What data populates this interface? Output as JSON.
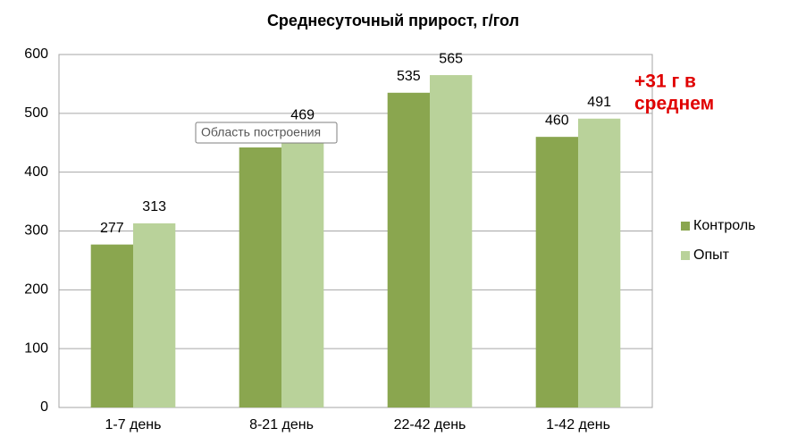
{
  "chart_data": {
    "type": "bar",
    "title": "Среднесуточный прирост, г/гол",
    "categories": [
      "1-7 день",
      "8-21 день",
      "22-42 день",
      "1-42 день"
    ],
    "series": [
      {
        "name": "Контроль",
        "color": "#8aa64f",
        "values": [
          277,
          442,
          535,
          460
        ]
      },
      {
        "name": "Опыт",
        "color": "#b9d29a",
        "values": [
          313,
          469,
          565,
          491
        ]
      }
    ],
    "ylim": [
      0,
      600
    ],
    "yticks": [
      0,
      100,
      200,
      300,
      400,
      500,
      600
    ],
    "grid": true,
    "legend": "right",
    "annotation": [
      "+31 г в",
      "среднем"
    ],
    "tooltip": "Область построения"
  }
}
